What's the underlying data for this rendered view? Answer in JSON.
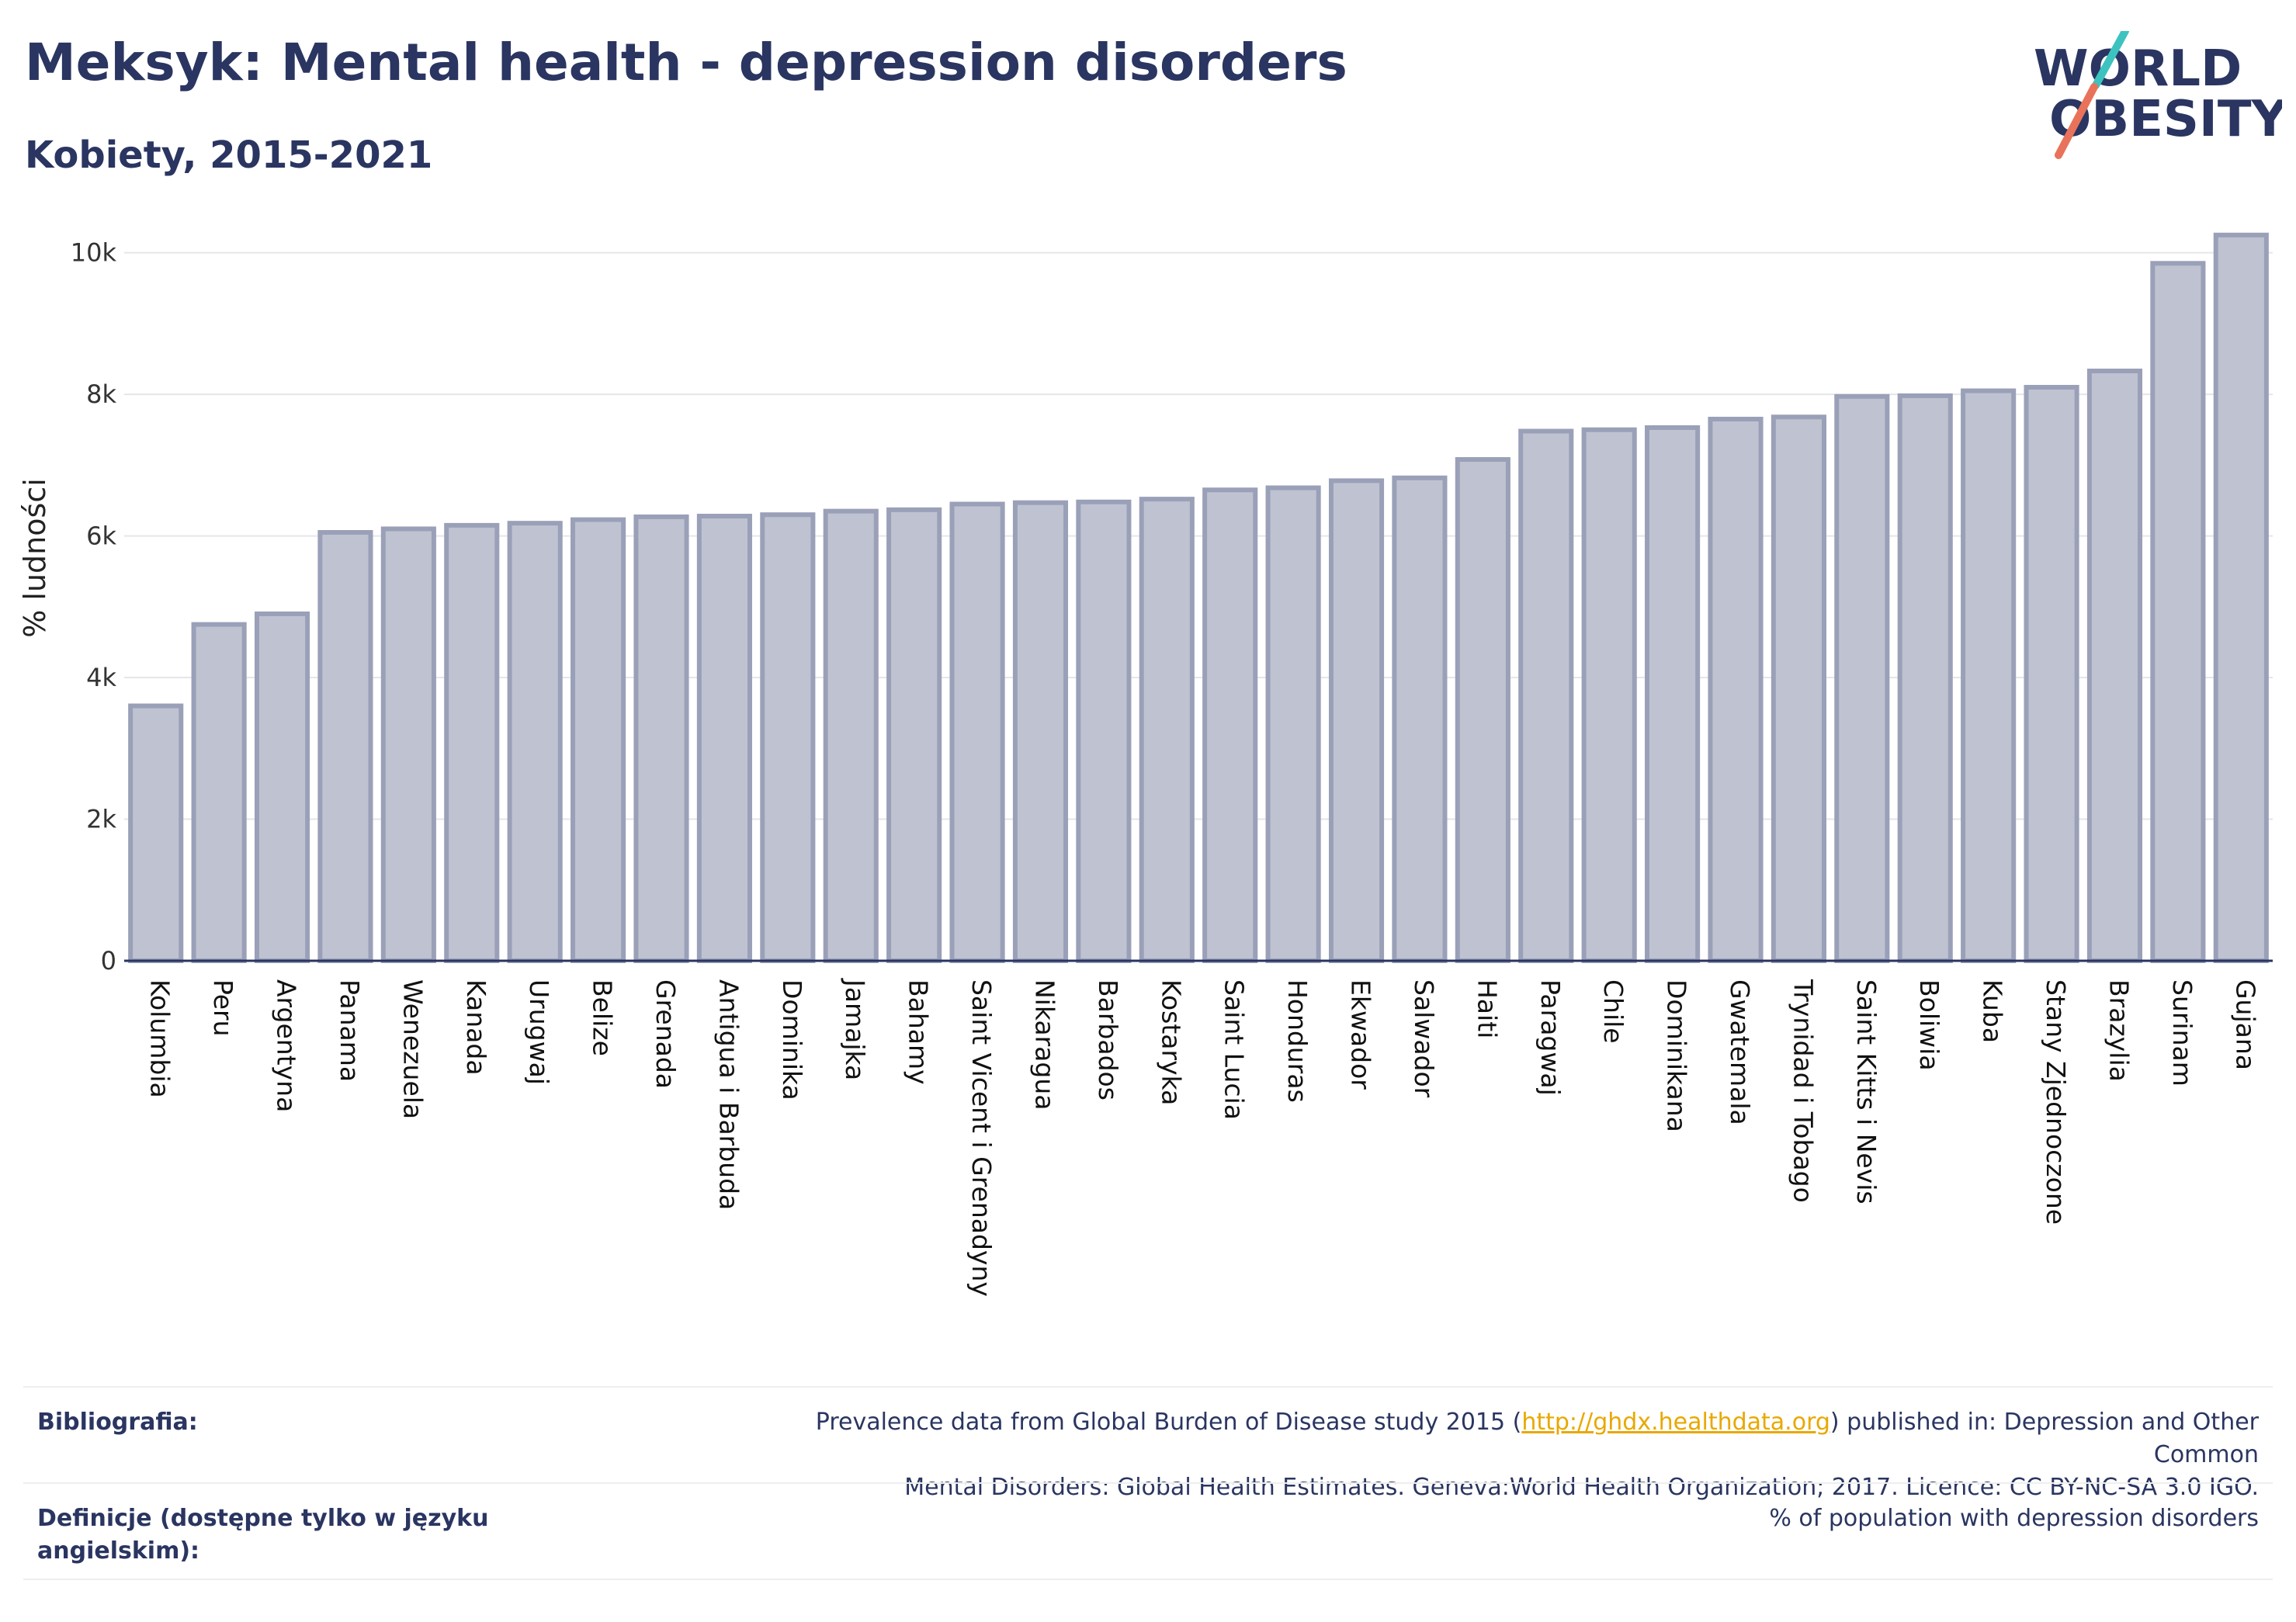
{
  "header": {
    "title": "Meksyk: Mental health - depression disorders",
    "subtitle": "Kobiety, 2015-2021"
  },
  "logo": {
    "line1": "WORLD",
    "line2": "OBESITY",
    "colors": {
      "text": "#2a3561",
      "slash_teal": "#3cc3c0",
      "slash_coral": "#e8735a"
    }
  },
  "chart_data": {
    "type": "bar",
    "title": "",
    "xlabel": "",
    "ylabel": "% ludności",
    "ylim": [
      0,
      10500
    ],
    "yticks": [
      0,
      2000,
      4000,
      6000,
      8000,
      10000
    ],
    "ytick_labels": [
      "0",
      "2k",
      "4k",
      "6k",
      "8k",
      "10k"
    ],
    "grid": true,
    "bar_color": "#bfc3d1",
    "bar_edge_color": "#9aa0b8",
    "categories": [
      "Kolumbia",
      "Peru",
      "Argentyna",
      "Panama",
      "Wenezuela",
      "Kanada",
      "Urugwaj",
      "Belize",
      "Grenada",
      "Antigua i Barbuda",
      "Dominika",
      "Jamajka",
      "Bahamy",
      "Saint Vicent i Grenadyny",
      "Nikaragua",
      "Barbados",
      "Kostaryka",
      "Saint Lucia",
      "Honduras",
      "Ekwador",
      "Salwador",
      "Haiti",
      "Paragwaj",
      "Chile",
      "Dominikana",
      "Gwatemala",
      "Trynidad i Tobago",
      "Saint Kitts i Nevis",
      "Boliwia",
      "Kuba",
      "Stany Zjednoczone",
      "Brazylia",
      "Surinam",
      "Gujana"
    ],
    "values": [
      3600,
      4750,
      4900,
      6050,
      6100,
      6150,
      6180,
      6230,
      6270,
      6280,
      6300,
      6350,
      6370,
      6450,
      6470,
      6480,
      6520,
      6650,
      6680,
      6780,
      6820,
      7080,
      7480,
      7500,
      7530,
      7650,
      7680,
      7970,
      7980,
      8050,
      8100,
      8330,
      9850,
      10250
    ]
  },
  "footer": {
    "bibliography_label": "Bibliografia:",
    "bibliography_pre": "Prevalence data from Global Burden of Disease study 2015 (",
    "bibliography_link": "http://ghdx.healthdata.org",
    "bibliography_post": ") published in: Depression and Other Common",
    "bibliography_line2": "Mental Disorders: Global Health Estimates. Geneva:World Health Organization; 2017. Licence: CC BY-NC-SA 3.0 IGO.",
    "definitions_label_line1": "Definicje (dostępne tylko w języku",
    "definitions_label_line2": "angielskim):",
    "definitions_value": "% of population with depression disorders"
  }
}
